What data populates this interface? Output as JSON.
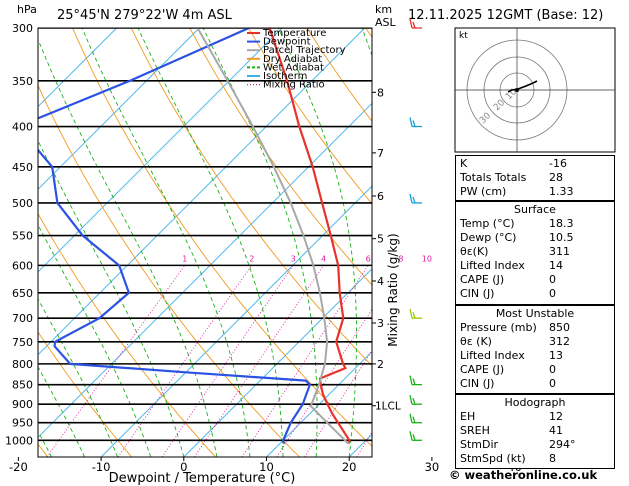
{
  "header": {
    "location": "25°45'N  279°22'W  4m  ASL",
    "datetime": "12.11.2025  12GMT  (Base: 12)"
  },
  "axes": {
    "y_left_unit": "hPa",
    "y_right_unit_top": "km",
    "y_right_unit_bottom": "ASL",
    "xlabel": "Dewpoint / Temperature (°C)",
    "mixing_ratio_label": "Mixing Ratio (g/kg)",
    "lcl_label": "1LCL"
  },
  "legend": [
    {
      "label": "Temperature",
      "color": "#e8322a"
    },
    {
      "label": "Dewpoint",
      "color": "#2c52e4"
    },
    {
      "label": "Parcel Trajectory",
      "color": "#a8a8a8"
    },
    {
      "label": "Dry Adiabat",
      "color": "#f29a1e"
    },
    {
      "label": "Wet Adiabat",
      "color": "#19b219"
    },
    {
      "label": "Isotherm",
      "color": "#3ab0e8"
    },
    {
      "label": "Mixing Ratio",
      "color": "#e020a0"
    }
  ],
  "chart_data": {
    "type": "line",
    "xlim": [
      -35,
      40
    ],
    "pressure_range": [
      1050,
      300
    ],
    "pressure_ticks": [
      300,
      350,
      400,
      450,
      500,
      550,
      600,
      650,
      700,
      750,
      800,
      850,
      900,
      950,
      1000
    ],
    "temperature_ticks": [
      -30,
      -20,
      -10,
      0,
      10,
      20,
      30,
      40
    ],
    "height_ticks_km": [
      {
        "km": 1,
        "p": 904
      },
      {
        "km": 2,
        "p": 800
      },
      {
        "km": 3,
        "p": 710
      },
      {
        "km": 4,
        "p": 628
      },
      {
        "km": 5,
        "p": 555
      },
      {
        "km": 6,
        "p": 490
      },
      {
        "km": 7,
        "p": 432
      },
      {
        "km": 8,
        "p": 362
      }
    ],
    "mixing_ratio_labels": [
      "1",
      "2",
      "3",
      "4",
      "6",
      "8",
      "10",
      "15",
      "20",
      "25"
    ],
    "mixing_ratio_values": [
      1,
      2,
      3,
      4,
      6,
      8,
      10,
      15,
      20,
      25
    ],
    "series": [
      {
        "name": "Temperature",
        "color": "#e8322a",
        "points": [
          [
            1010,
            18.3
          ],
          [
            1000,
            18
          ],
          [
            950,
            14.5
          ],
          [
            925,
            12.7
          ],
          [
            900,
            11
          ],
          [
            875,
            9.3
          ],
          [
            850,
            7.8
          ],
          [
            835,
            7
          ],
          [
            810,
            8.8
          ],
          [
            800,
            8
          ],
          [
            750,
            4.5
          ],
          [
            700,
            2.5
          ],
          [
            650,
            -1
          ],
          [
            600,
            -4.5
          ],
          [
            550,
            -9
          ],
          [
            500,
            -14
          ],
          [
            450,
            -19.5
          ],
          [
            400,
            -26
          ],
          [
            350,
            -33
          ],
          [
            300,
            -41.5
          ]
        ]
      },
      {
        "name": "Dewpoint",
        "color": "#2c52e4",
        "points": [
          [
            1010,
            10.5
          ],
          [
            1000,
            10
          ],
          [
            950,
            8.8
          ],
          [
            900,
            8
          ],
          [
            850,
            6.5
          ],
          [
            840,
            5.5
          ],
          [
            820,
            -10
          ],
          [
            800,
            -25
          ],
          [
            760,
            -29
          ],
          [
            750,
            -29.5
          ],
          [
            700,
            -27
          ],
          [
            650,
            -26.5
          ],
          [
            600,
            -31
          ],
          [
            550,
            -39
          ],
          [
            500,
            -46
          ],
          [
            450,
            -51
          ],
          [
            400,
            -60
          ],
          [
            350,
            -52
          ],
          [
            300,
            -44
          ]
        ]
      },
      {
        "name": "Parcel Trajectory",
        "color": "#a8a8a8",
        "points": [
          [
            1010,
            18.3
          ],
          [
            950,
            13.2
          ],
          [
            905,
            9.2
          ],
          [
            850,
            7.6
          ],
          [
            800,
            5.8
          ],
          [
            750,
            3.4
          ],
          [
            700,
            0.2
          ],
          [
            650,
            -3.4
          ],
          [
            600,
            -7.5
          ],
          [
            550,
            -12.3
          ],
          [
            500,
            -17.8
          ],
          [
            450,
            -24.2
          ],
          [
            400,
            -31.6
          ],
          [
            350,
            -40.2
          ],
          [
            300,
            -50.2
          ]
        ]
      }
    ]
  },
  "hodograph": {
    "title": "kt",
    "ring_labels": [
      "10",
      "20",
      "30"
    ]
  },
  "indices": {
    "basic": [
      {
        "label": "K",
        "value": "-16"
      },
      {
        "label": "Totals Totals",
        "value": "28"
      },
      {
        "label": "PW (cm)",
        "value": "1.33"
      }
    ],
    "surface": {
      "title": "Surface",
      "rows": [
        {
          "label": "Temp (°C)",
          "value": "18.3"
        },
        {
          "label": "Dewp (°C)",
          "value": "10.5"
        },
        {
          "label": "θε(K)",
          "value": "311"
        },
        {
          "label": "Lifted Index",
          "value": "14"
        },
        {
          "label": "CAPE (J)",
          "value": "0"
        },
        {
          "label": "CIN (J)",
          "value": "0"
        }
      ]
    },
    "most_unstable": {
      "title": "Most Unstable",
      "rows": [
        {
          "label": "Pressure (mb)",
          "value": "850"
        },
        {
          "label": "θε (K)",
          "value": "312"
        },
        {
          "label": "Lifted Index",
          "value": "13"
        },
        {
          "label": "CAPE (J)",
          "value": "0"
        },
        {
          "label": "CIN (J)",
          "value": "0"
        }
      ]
    },
    "hodograph_indices": {
      "title": "Hodograph",
      "rows": [
        {
          "label": "EH",
          "value": "12"
        },
        {
          "label": "SREH",
          "value": "41"
        },
        {
          "label": "StmDir",
          "value": "294°"
        },
        {
          "label": "StmSpd (kt)",
          "value": "8"
        }
      ]
    }
  },
  "footer": "© weatheronline.co.uk"
}
